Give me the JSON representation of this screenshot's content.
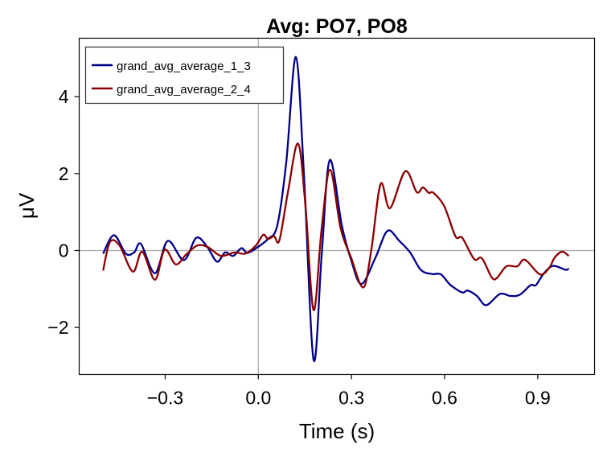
{
  "chart_data": {
    "type": "line",
    "title": "Avg: PO7, PO8",
    "xlabel": "Time (s)",
    "ylabel": "μV",
    "xlim": [
      -0.577,
      1.083
    ],
    "ylim": [
      -3.22,
      5.52
    ],
    "xticks": [
      -0.3,
      0.0,
      0.3,
      0.6,
      0.9
    ],
    "xtick_labels": [
      "−0.3",
      "0.0",
      "0.3",
      "0.6",
      "0.9"
    ],
    "yticks": [
      -2,
      0,
      2,
      4
    ],
    "ytick_labels": [
      "−2",
      "0",
      "2",
      "4"
    ],
    "grid": false,
    "reference_lines": {
      "x": 0,
      "y": 0
    },
    "legend_position": "top-left",
    "series": [
      {
        "name": "grand_avg_average_1_3",
        "color": "#00008b",
        "points": [
          [
            -0.5,
            -0.08
          ],
          [
            -0.465,
            0.4
          ],
          [
            -0.427,
            -0.08
          ],
          [
            -0.4,
            -0.05
          ],
          [
            -0.378,
            0.17
          ],
          [
            -0.333,
            -0.59
          ],
          [
            -0.292,
            0.25
          ],
          [
            -0.24,
            -0.25
          ],
          [
            -0.2,
            0.33
          ],
          [
            -0.165,
            0.1
          ],
          [
            -0.133,
            -0.29
          ],
          [
            -0.107,
            -0.05
          ],
          [
            -0.081,
            -0.14
          ],
          [
            -0.055,
            0.06
          ],
          [
            -0.034,
            -0.06
          ],
          [
            0.0,
            0.1
          ],
          [
            0.031,
            0.3
          ],
          [
            0.061,
            0.65
          ],
          [
            0.09,
            2.3
          ],
          [
            0.121,
            5.03
          ],
          [
            0.147,
            1.97
          ],
          [
            0.178,
            -2.84
          ],
          [
            0.204,
            -0.12
          ],
          [
            0.23,
            2.35
          ],
          [
            0.269,
            0.65
          ],
          [
            0.299,
            -0.25
          ],
          [
            0.332,
            -0.87
          ],
          [
            0.377,
            -0.19
          ],
          [
            0.416,
            0.51
          ],
          [
            0.454,
            0.25
          ],
          [
            0.489,
            -0.05
          ],
          [
            0.523,
            -0.5
          ],
          [
            0.558,
            -0.61
          ],
          [
            0.588,
            -0.62
          ],
          [
            0.618,
            -0.89
          ],
          [
            0.657,
            -1.09
          ],
          [
            0.674,
            -1.04
          ],
          [
            0.704,
            -1.18
          ],
          [
            0.734,
            -1.42
          ],
          [
            0.778,
            -1.13
          ],
          [
            0.812,
            -1.18
          ],
          [
            0.842,
            -1.15
          ],
          [
            0.877,
            -0.9
          ],
          [
            0.894,
            -0.9
          ],
          [
            0.92,
            -0.59
          ],
          [
            0.95,
            -0.4
          ],
          [
            0.989,
            -0.5
          ],
          [
            1.0,
            -0.47
          ]
        ]
      },
      {
        "name": "grand_avg_average_2_4",
        "color": "#8b0000",
        "points": [
          [
            -0.5,
            -0.52
          ],
          [
            -0.478,
            0.22
          ],
          [
            -0.447,
            0.13
          ],
          [
            -0.404,
            -0.55
          ],
          [
            -0.374,
            -0.03
          ],
          [
            -0.333,
            -0.76
          ],
          [
            -0.302,
            0.02
          ],
          [
            -0.266,
            -0.36
          ],
          [
            -0.232,
            -0.1
          ],
          [
            -0.197,
            0.13
          ],
          [
            -0.163,
            0.09
          ],
          [
            -0.12,
            -0.14
          ],
          [
            -0.077,
            -0.05
          ],
          [
            -0.042,
            -0.08
          ],
          [
            -0.008,
            0.13
          ],
          [
            0.016,
            0.41
          ],
          [
            0.031,
            0.3
          ],
          [
            0.051,
            0.37
          ],
          [
            0.068,
            0.27
          ],
          [
            0.096,
            1.55
          ],
          [
            0.128,
            2.78
          ],
          [
            0.152,
            1.14
          ],
          [
            0.178,
            -1.55
          ],
          [
            0.204,
            0.58
          ],
          [
            0.231,
            2.1
          ],
          [
            0.265,
            0.58
          ],
          [
            0.299,
            -0.19
          ],
          [
            0.338,
            -0.96
          ],
          [
            0.364,
            0.02
          ],
          [
            0.394,
            1.73
          ],
          [
            0.424,
            1.1
          ],
          [
            0.473,
            2.06
          ],
          [
            0.51,
            1.52
          ],
          [
            0.53,
            1.64
          ],
          [
            0.549,
            1.5
          ],
          [
            0.564,
            1.5
          ],
          [
            0.599,
            1.15
          ],
          [
            0.635,
            0.37
          ],
          [
            0.657,
            0.33
          ],
          [
            0.695,
            -0.22
          ],
          [
            0.72,
            -0.2
          ],
          [
            0.752,
            -0.7
          ],
          [
            0.769,
            -0.71
          ],
          [
            0.799,
            -0.41
          ],
          [
            0.834,
            -0.41
          ],
          [
            0.859,
            -0.24
          ],
          [
            0.907,
            -0.62
          ],
          [
            0.937,
            -0.45
          ],
          [
            0.954,
            -0.19
          ],
          [
            0.978,
            -0.03
          ],
          [
            1.0,
            -0.14
          ]
        ]
      }
    ]
  }
}
